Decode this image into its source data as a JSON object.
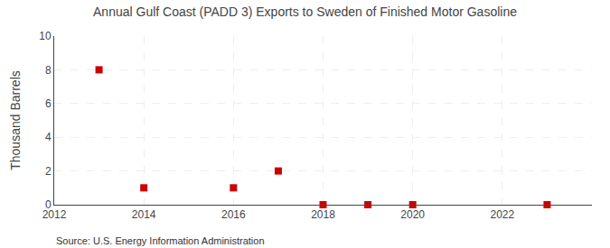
{
  "chart_data": {
    "type": "scatter",
    "title": "Annual Gulf Coast (PADD 3) Exports to Sweden of Finished Motor Gasoline",
    "ylabel": "Thousand Barrels",
    "annotations": [
      "Source: U.S. Energy Information Administration"
    ],
    "x": [
      2013,
      2014,
      2016,
      2017,
      2018,
      2019,
      2020,
      2023
    ],
    "values": [
      8,
      1,
      1,
      2,
      0,
      0,
      0,
      0
    ],
    "color": "#cc0000",
    "marker": "square",
    "xlim": [
      2012,
      2024
    ],
    "xticks": [
      2012,
      2014,
      2016,
      2018,
      2020,
      2022
    ],
    "ylim": [
      0,
      10
    ],
    "yticks": [
      0,
      2,
      4,
      6,
      8,
      10
    ],
    "grid": true
  }
}
